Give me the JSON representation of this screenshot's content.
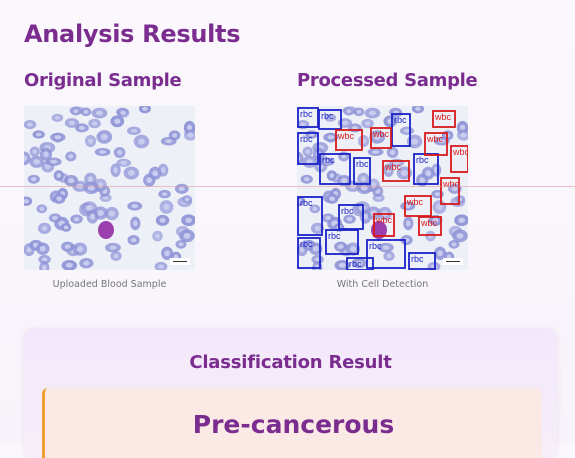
{
  "header": {
    "title": "Analysis Results"
  },
  "original": {
    "title": "Original Sample",
    "caption": "Uploaded Blood Sample"
  },
  "processed": {
    "title": "Processed Sample",
    "caption": "With Cell Detection",
    "box_labels": {
      "rbc": "rbc",
      "wbc": "wbc"
    },
    "colors": {
      "rbc": "#1a22c8",
      "wbc": "#d81a1a"
    }
  },
  "classification": {
    "heading": "Classification Result",
    "value": "Pre-cancerous"
  },
  "colors": {
    "accent": "#7a2d8f",
    "rbc_cell": "#8e93d6",
    "rbc_core": "#c9ccee",
    "wbc_cell": "#9b3fae",
    "result_border": "#f0a030",
    "result_bg": "#fbe9e6"
  }
}
